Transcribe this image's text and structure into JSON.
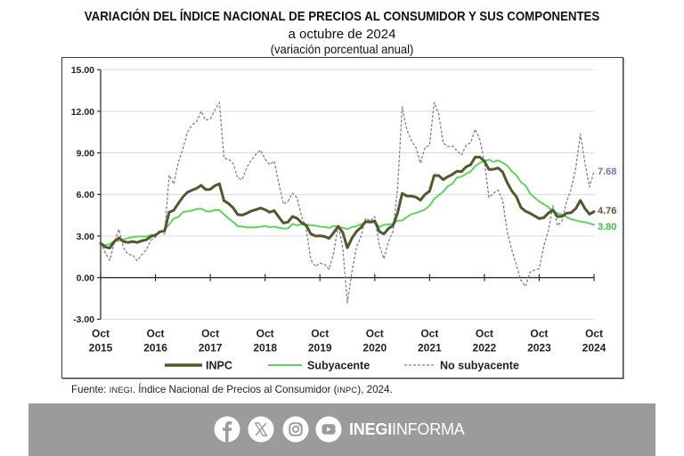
{
  "header": {
    "title": "VARIACIÓN DEL ÍNDICE NACIONAL DE PRECIOS AL CONSUMIDOR Y SUS COMPONENTES",
    "subtitle": "a octubre de 2024",
    "units": "(variación porcentual anual)"
  },
  "chart_data": {
    "type": "line",
    "title": "VARIACIÓN DEL ÍNDICE NACIONAL DE PRECIOS AL CONSUMIDOR Y SUS COMPONENTES",
    "subtitle": "a octubre de 2024",
    "xlabel": "",
    "ylabel": "(variación porcentual anual)",
    "ylim": [
      -3,
      15
    ],
    "grid": true,
    "legend_position": "bottom",
    "yticks": [
      15,
      12,
      9,
      6,
      3,
      0,
      -3
    ],
    "ytick_labels": [
      "15.00",
      "12.00",
      "9.00",
      "6.00",
      "3.00",
      "0.00",
      "-3.00"
    ],
    "xticks": [
      {
        "key": "2015-10",
        "month": "Oct",
        "year": "2015"
      },
      {
        "key": "2016-10",
        "month": "Oct",
        "year": "2016"
      },
      {
        "key": "2017-10",
        "month": "Oct",
        "year": "2017"
      },
      {
        "key": "2018-10",
        "month": "Oct",
        "year": "2018"
      },
      {
        "key": "2019-10",
        "month": "Oct",
        "year": "2019"
      },
      {
        "key": "2020-10",
        "month": "Oct",
        "year": "2020"
      },
      {
        "key": "2021-10",
        "month": "Oct",
        "year": "2021"
      },
      {
        "key": "2022-10",
        "month": "Oct",
        "year": "2022"
      },
      {
        "key": "2023-10",
        "month": "Oct",
        "year": "2023"
      },
      {
        "key": "2024-10",
        "month": "Oct",
        "year": "2024"
      }
    ],
    "x": [
      "2015-10",
      "2015-11",
      "2015-12",
      "2016-01",
      "2016-02",
      "2016-03",
      "2016-04",
      "2016-05",
      "2016-06",
      "2016-07",
      "2016-08",
      "2016-09",
      "2016-10",
      "2016-11",
      "2016-12",
      "2017-01",
      "2017-02",
      "2017-03",
      "2017-04",
      "2017-05",
      "2017-06",
      "2017-07",
      "2017-08",
      "2017-09",
      "2017-10",
      "2017-11",
      "2017-12",
      "2018-01",
      "2018-02",
      "2018-03",
      "2018-04",
      "2018-05",
      "2018-06",
      "2018-07",
      "2018-08",
      "2018-09",
      "2018-10",
      "2018-11",
      "2018-12",
      "2019-01",
      "2019-02",
      "2019-03",
      "2019-04",
      "2019-05",
      "2019-06",
      "2019-07",
      "2019-08",
      "2019-09",
      "2019-10",
      "2019-11",
      "2019-12",
      "2020-01",
      "2020-02",
      "2020-03",
      "2020-04",
      "2020-05",
      "2020-06",
      "2020-07",
      "2020-08",
      "2020-09",
      "2020-10",
      "2020-11",
      "2020-12",
      "2021-01",
      "2021-02",
      "2021-03",
      "2021-04",
      "2021-05",
      "2021-06",
      "2021-07",
      "2021-08",
      "2021-09",
      "2021-10",
      "2021-11",
      "2021-12",
      "2022-01",
      "2022-02",
      "2022-03",
      "2022-04",
      "2022-05",
      "2022-06",
      "2022-07",
      "2022-08",
      "2022-09",
      "2022-10",
      "2022-11",
      "2022-12",
      "2023-01",
      "2023-02",
      "2023-03",
      "2023-04",
      "2023-05",
      "2023-06",
      "2023-07",
      "2023-08",
      "2023-09",
      "2023-10",
      "2023-11",
      "2023-12",
      "2024-01",
      "2024-02",
      "2024-03",
      "2024-04",
      "2024-05",
      "2024-06",
      "2024-07",
      "2024-08",
      "2024-09",
      "2024-10"
    ],
    "series": [
      {
        "name": "INPC",
        "color": "#55552f",
        "label_color": "#5a5a33",
        "style": "solid",
        "end_label": "4.76",
        "values": [
          2.48,
          2.21,
          2.13,
          2.61,
          2.87,
          2.6,
          2.54,
          2.6,
          2.54,
          2.65,
          2.73,
          2.97,
          3.06,
          3.31,
          3.36,
          4.72,
          4.86,
          5.35,
          5.82,
          6.16,
          6.31,
          6.44,
          6.66,
          6.35,
          6.37,
          6.63,
          6.77,
          5.55,
          5.34,
          5.04,
          4.55,
          4.51,
          4.65,
          4.81,
          4.9,
          5.02,
          4.9,
          4.72,
          4.83,
          4.37,
          3.94,
          4.0,
          4.41,
          4.28,
          3.95,
          3.78,
          3.16,
          3.0,
          3.02,
          2.97,
          2.83,
          3.24,
          3.7,
          3.25,
          2.15,
          2.84,
          3.33,
          3.62,
          4.05,
          4.01,
          4.09,
          3.33,
          3.15,
          3.54,
          3.76,
          4.67,
          6.08,
          5.89,
          5.88,
          5.81,
          5.59,
          6.0,
          6.24,
          7.37,
          7.36,
          7.07,
          7.28,
          7.45,
          7.68,
          7.65,
          7.99,
          8.15,
          8.7,
          8.7,
          8.41,
          7.8,
          7.82,
          7.91,
          7.62,
          6.85,
          6.25,
          5.84,
          5.06,
          4.79,
          4.64,
          4.45,
          4.26,
          4.32,
          4.66,
          4.88,
          4.4,
          4.42,
          4.65,
          4.69,
          4.98,
          5.57,
          4.99,
          4.58,
          4.76
        ]
      },
      {
        "name": "Subyacente",
        "color": "#5fd35f",
        "label_color": "#3fbf3f",
        "style": "solid",
        "end_label": "3.80",
        "values": [
          2.47,
          2.34,
          2.41,
          2.64,
          2.66,
          2.75,
          2.85,
          2.92,
          2.97,
          2.97,
          2.96,
          3.07,
          3.1,
          3.29,
          3.44,
          3.84,
          4.26,
          4.37,
          4.72,
          4.78,
          4.83,
          4.94,
          4.98,
          4.8,
          4.77,
          4.88,
          4.87,
          4.56,
          4.27,
          4.02,
          3.71,
          3.69,
          3.62,
          3.63,
          3.63,
          3.67,
          3.73,
          3.63,
          3.68,
          3.6,
          3.54,
          3.55,
          3.87,
          3.77,
          3.85,
          3.82,
          3.78,
          3.75,
          3.68,
          3.65,
          3.59,
          3.73,
          3.66,
          3.6,
          3.5,
          3.64,
          3.71,
          3.85,
          3.97,
          3.99,
          3.98,
          3.66,
          3.8,
          3.84,
          3.87,
          4.12,
          4.13,
          4.37,
          4.58,
          4.66,
          4.78,
          4.92,
          5.19,
          5.67,
          5.94,
          6.21,
          6.59,
          6.78,
          7.22,
          7.28,
          7.49,
          7.65,
          8.05,
          8.28,
          8.42,
          8.51,
          8.35,
          8.45,
          8.29,
          8.09,
          7.67,
          7.39,
          6.89,
          6.64,
          6.08,
          5.76,
          5.5,
          5.3,
          5.09,
          4.76,
          4.64,
          4.55,
          4.37,
          4.21,
          4.13,
          4.05,
          4.0,
          3.91,
          3.8
        ]
      },
      {
        "name": "No subyacente",
        "color": "#7c7ca6",
        "label_color": "#7a70a8",
        "style": "dashed",
        "end_label": "7.68",
        "values": [
          2.52,
          1.8,
          1.25,
          2.54,
          3.49,
          2.16,
          1.67,
          1.64,
          1.22,
          1.64,
          2.02,
          2.69,
          2.92,
          3.36,
          3.13,
          7.4,
          6.75,
          8.35,
          9.3,
          10.5,
          11.0,
          11.25,
          12.0,
          11.35,
          11.45,
          12.1,
          12.64,
          8.6,
          8.55,
          8.25,
          7.18,
          7.07,
          7.95,
          8.5,
          8.9,
          9.2,
          8.55,
          8.15,
          8.4,
          6.8,
          5.3,
          5.5,
          6.1,
          5.75,
          4.4,
          3.55,
          1.3,
          0.8,
          1.05,
          0.95,
          0.6,
          1.8,
          3.75,
          2.15,
          -1.82,
          0.4,
          2.2,
          3.0,
          4.29,
          4.1,
          4.4,
          2.3,
          1.35,
          2.6,
          3.35,
          6.4,
          12.32,
          10.7,
          9.9,
          9.4,
          8.25,
          9.4,
          9.54,
          12.64,
          11.8,
          9.7,
          9.45,
          9.5,
          9.15,
          8.85,
          9.55,
          9.75,
          10.71,
          9.95,
          8.35,
          5.78,
          6.1,
          6.32,
          5.57,
          3.3,
          2.0,
          0.9,
          -0.2,
          -0.64,
          0.4,
          0.55,
          0.64,
          2.25,
          3.4,
          5.2,
          3.75,
          4.1,
          5.5,
          6.4,
          7.9,
          10.36,
          8.3,
          6.54,
          7.68
        ]
      }
    ]
  },
  "source": {
    "label": "Fuente: ",
    "org": "INEGI",
    "text1": ". Índice Nacional de Precios al Consumidor (",
    "abbr": "INPC",
    "text2": "), 2024."
  },
  "footer": {
    "background": "#9b9b9b",
    "social_icons": [
      "facebook-icon",
      "x-icon",
      "instagram-icon",
      "youtube-icon"
    ],
    "brand_bold": "INEGI",
    "brand_light": "INFORMA"
  }
}
